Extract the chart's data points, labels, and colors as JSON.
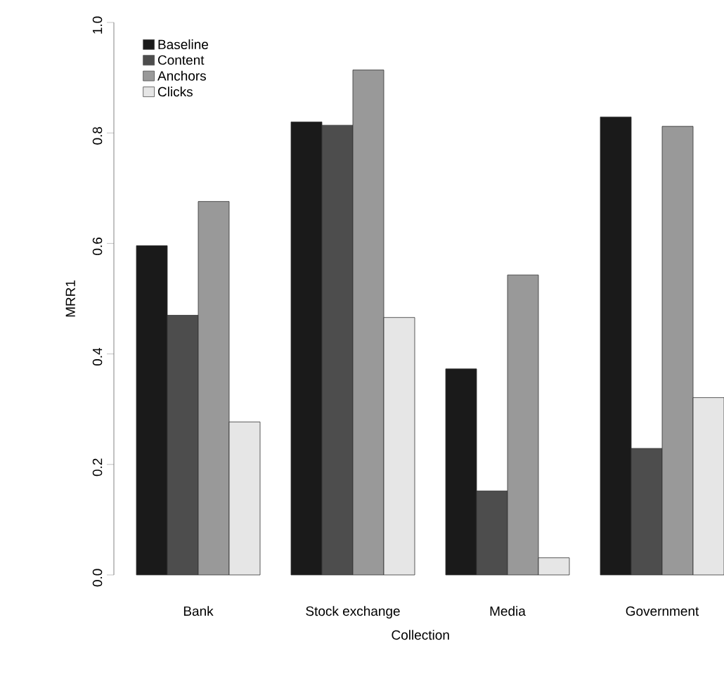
{
  "chart_data": {
    "type": "bar",
    "xlabel": "Collection",
    "ylabel": "MRR1",
    "categories": [
      "Bank",
      "Stock exchange",
      "Media",
      "Government"
    ],
    "series": [
      {
        "name": "Baseline",
        "color": "#1a1a1a",
        "values": [
          0.596,
          0.82,
          0.373,
          0.829
        ]
      },
      {
        "name": "Content",
        "color": "#4d4d4d",
        "values": [
          0.47,
          0.814,
          0.152,
          0.229
        ]
      },
      {
        "name": "Anchors",
        "color": "#999999",
        "values": [
          0.676,
          0.914,
          0.543,
          0.812
        ]
      },
      {
        "name": "Clicks",
        "color": "#e6e6e6",
        "values": [
          0.277,
          0.466,
          0.031,
          0.321
        ]
      }
    ],
    "ylim": [
      0,
      1
    ],
    "yticks": [
      {
        "value": 0,
        "label": "0.0"
      },
      0.2,
      0.4,
      0.6,
      0.8,
      {
        "value": 1,
        "label": "1.0"
      }
    ],
    "legend": "top left",
    "grid": false
  }
}
